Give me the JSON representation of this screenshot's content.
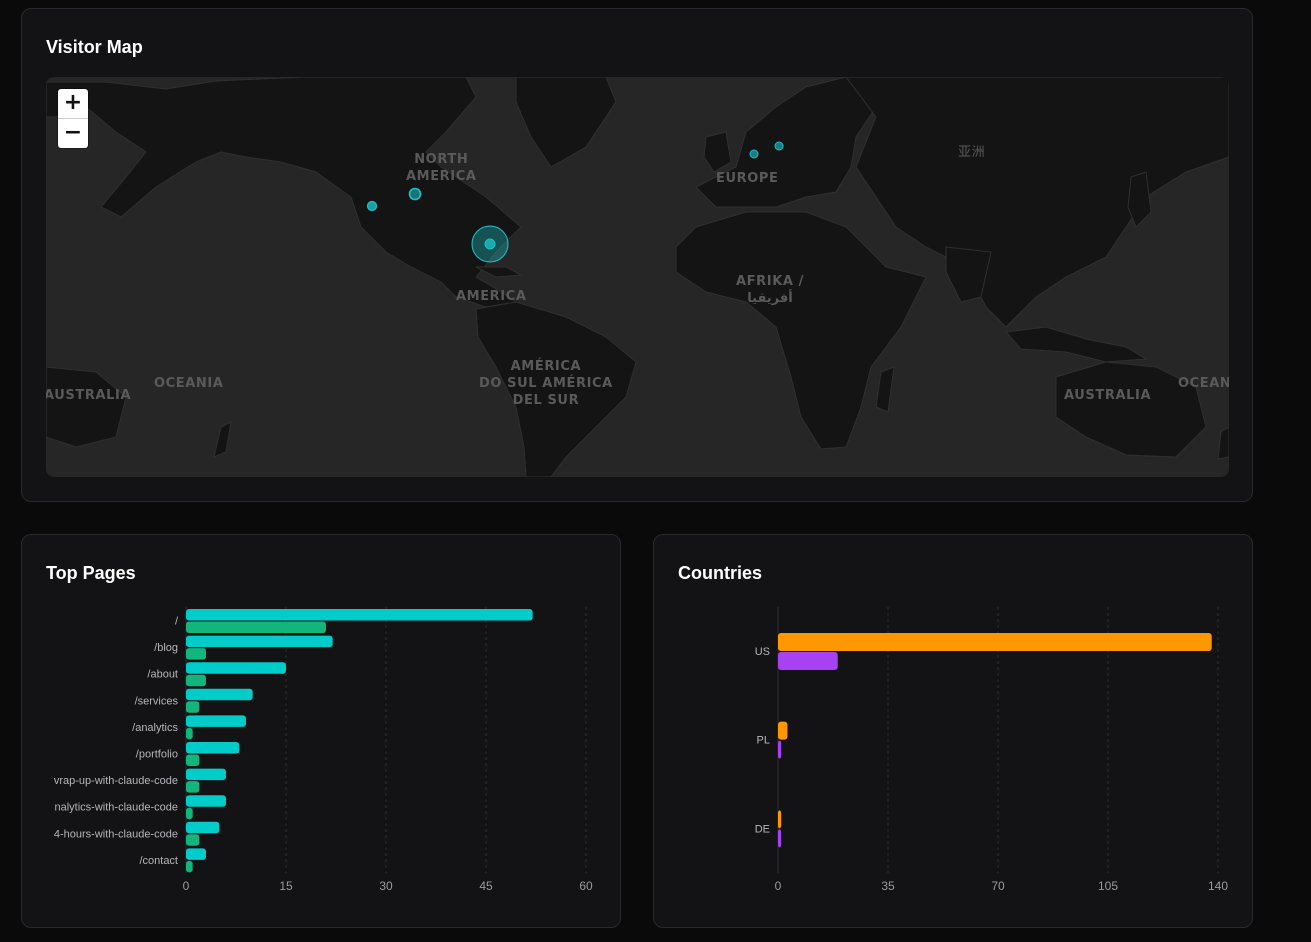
{
  "visitor_map": {
    "title": "Visitor Map",
    "zoom_in_label": "+",
    "zoom_out_label": "−",
    "region_labels": {
      "north_america": "NORTH\nAMERICA",
      "europe": "EUROPE",
      "asia": "亚洲",
      "africa": "AFRIKA /\nأفريقيا",
      "america": "AMERICA",
      "south_america": "AMÉRICA\nDO SUL AMÉRICA\nDEL SUR",
      "oceania_left": "OCEANIA",
      "oceania_right": "OCEAN",
      "australia_left": "AUSTRALIA",
      "australia_right": "AUSTRALIA"
    },
    "accent_color": "#19c3c9"
  },
  "top_pages": {
    "title": "Top Pages"
  },
  "countries": {
    "title": "Countries"
  },
  "chart_data": [
    {
      "type": "bar",
      "orientation": "horizontal",
      "title": "Top Pages",
      "categories": [
        "/",
        "/blog",
        "/about",
        "/services",
        "/analytics",
        "/portfolio",
        "vrap-up-with-claude-code",
        "nalytics-with-claude-code",
        "4-hours-with-claude-code",
        "/contact"
      ],
      "series": [
        {
          "color": "#00cdc9",
          "values": [
            52,
            22,
            15,
            10,
            9,
            8,
            6,
            6,
            5,
            3
          ]
        },
        {
          "color": "#13b57c",
          "values": [
            21,
            3,
            3,
            2,
            1,
            2,
            2,
            1,
            2,
            1
          ]
        }
      ],
      "xlim": [
        0,
        60
      ],
      "xticks": [
        "0",
        "15",
        "30",
        "45",
        "60"
      ],
      "grid": "vertical-dashed"
    },
    {
      "type": "bar",
      "orientation": "horizontal",
      "title": "Countries",
      "categories": [
        "US",
        "PL",
        "DE"
      ],
      "series": [
        {
          "color": "#ff9800",
          "values": [
            138,
            3,
            1
          ]
        },
        {
          "color": "#a642f4",
          "values": [
            19,
            1,
            1
          ]
        }
      ],
      "xlim": [
        0,
        140
      ],
      "xticks": [
        "0",
        "35",
        "70",
        "105",
        "140"
      ],
      "grid": "vertical-dashed"
    }
  ]
}
